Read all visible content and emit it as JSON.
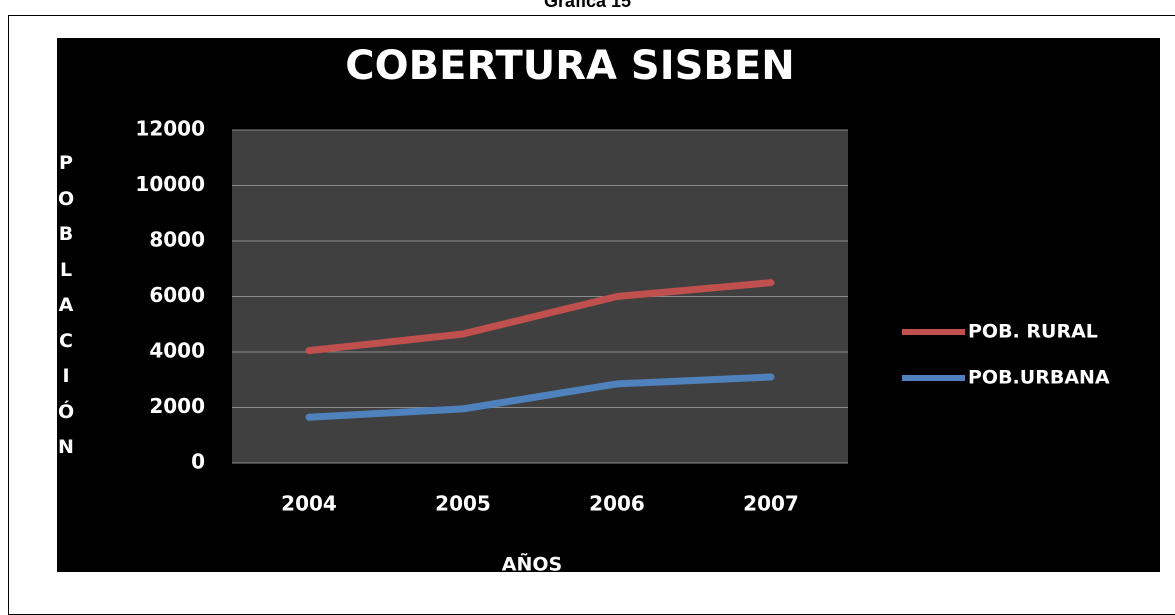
{
  "caption": "Gráfica 15",
  "chart_data": {
    "type": "line",
    "title": "COBERTURA SISBEN",
    "x_label": "AÑOS",
    "y_label": "POBLACIÓN",
    "categories": [
      "2004",
      "2005",
      "2006",
      "2007"
    ],
    "series": [
      {
        "name": "POB. RURAL",
        "color": "#c0504d",
        "values": [
          4050,
          4650,
          6000,
          6500
        ]
      },
      {
        "name": "POB.URBANA",
        "color": "#4f81bd",
        "values": [
          1650,
          1950,
          2850,
          3100
        ]
      }
    ],
    "ylim": [
      0,
      12000
    ],
    "yticks": [
      0,
      2000,
      4000,
      6000,
      8000,
      10000,
      12000
    ],
    "grid": true,
    "legend": "right"
  }
}
